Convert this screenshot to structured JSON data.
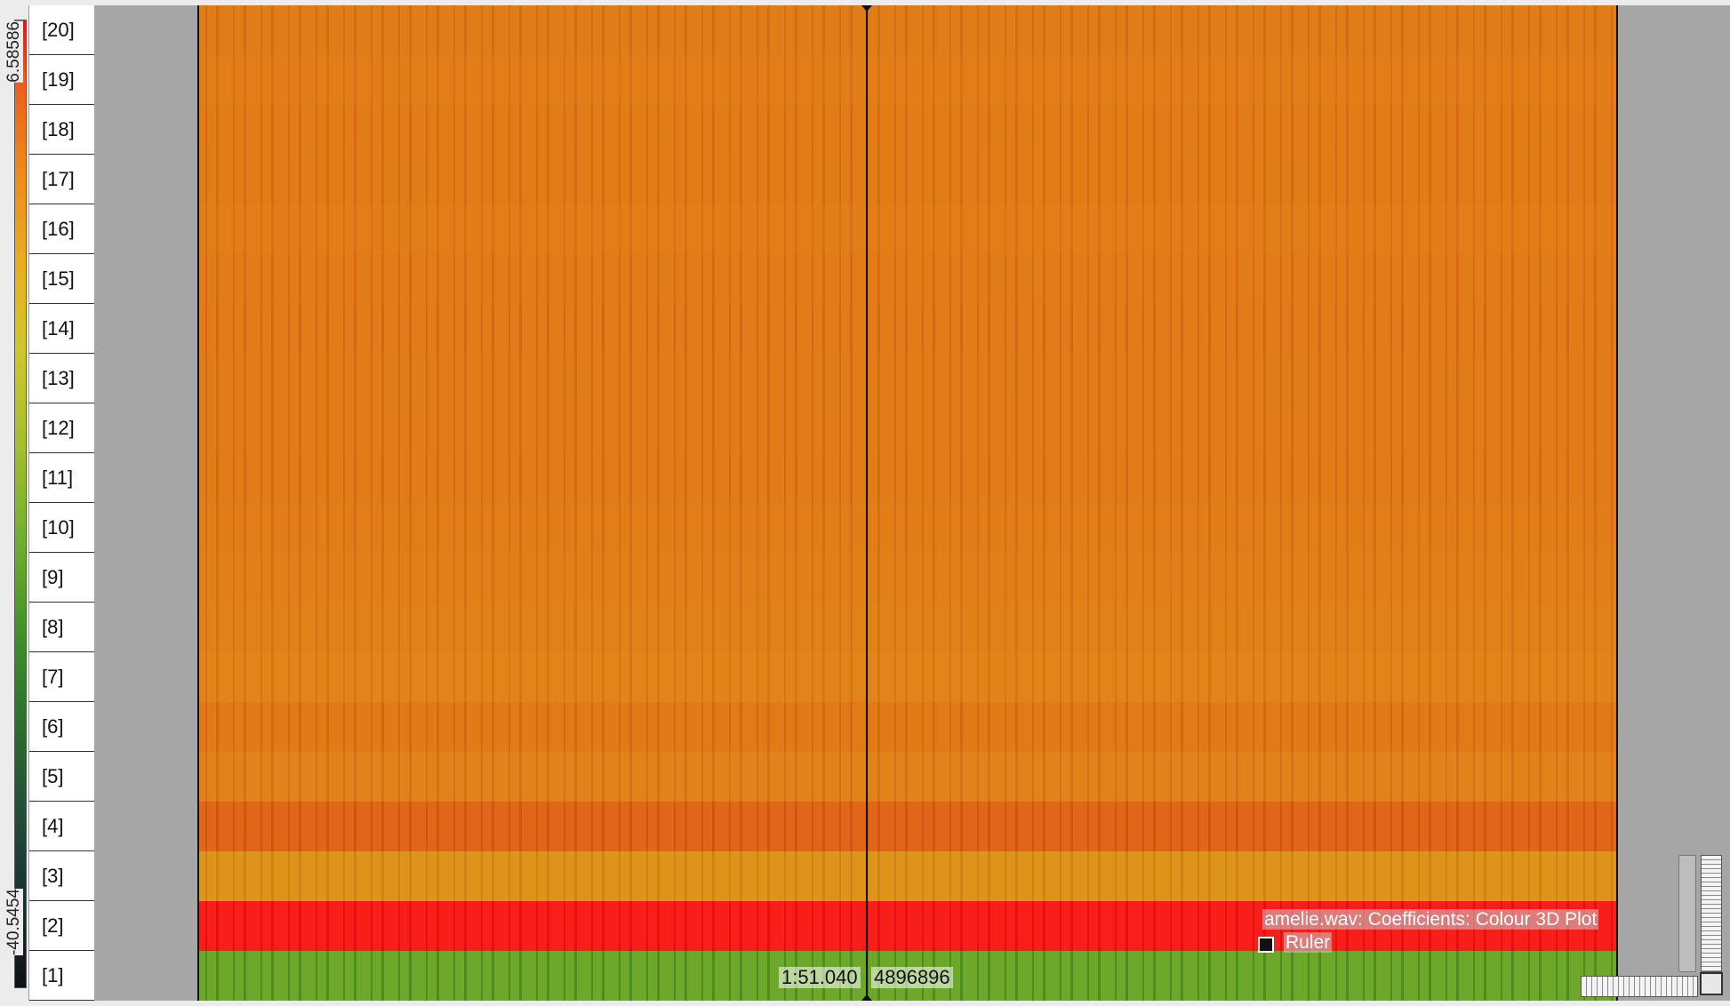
{
  "colour_scale": {
    "max_label": "6.58586",
    "min_label": "-40.5454"
  },
  "bin_axis": {
    "labels": [
      "[20]",
      "[19]",
      "[18]",
      "[17]",
      "[16]",
      "[15]",
      "[14]",
      "[13]",
      "[12]",
      "[11]",
      "[10]",
      "[9]",
      "[8]",
      "[7]",
      "[6]",
      "[5]",
      "[4]",
      "[3]",
      "[2]",
      "[1]"
    ]
  },
  "playhead": {
    "time": "1:51.040",
    "frame": "4896896"
  },
  "layer_info": {
    "line1": "amelie.wav: Coefficients: Colour 3D Plot",
    "line2": "Ruler"
  },
  "colors": {
    "row_base": [
      "#e07d18",
      "#e27e18",
      "#e27c17",
      "#e17d17",
      "#e27e18",
      "#e27c18",
      "#e27b18",
      "#e17d18",
      "#e17c18",
      "#e17c18",
      "#e17e18",
      "#e18019",
      "#e18218",
      "#e2841a",
      "#e27a17",
      "#e2821a",
      "#e0661a",
      "#de931b",
      "#f81f1a",
      "#6ea82a"
    ],
    "row_stripe": [
      "#d46e14",
      "#d87014",
      "#d86a12",
      "#d46c12",
      "#d87014",
      "#d76a12",
      "#d46812",
      "#d66c12",
      "#d46c12",
      "#d46a12",
      "#d66e12",
      "#d67212",
      "#d67414",
      "#d47812",
      "#d46a10",
      "#d47214",
      "#d2540e",
      "#d08414",
      "#e80f10",
      "#4e8c20"
    ]
  }
}
